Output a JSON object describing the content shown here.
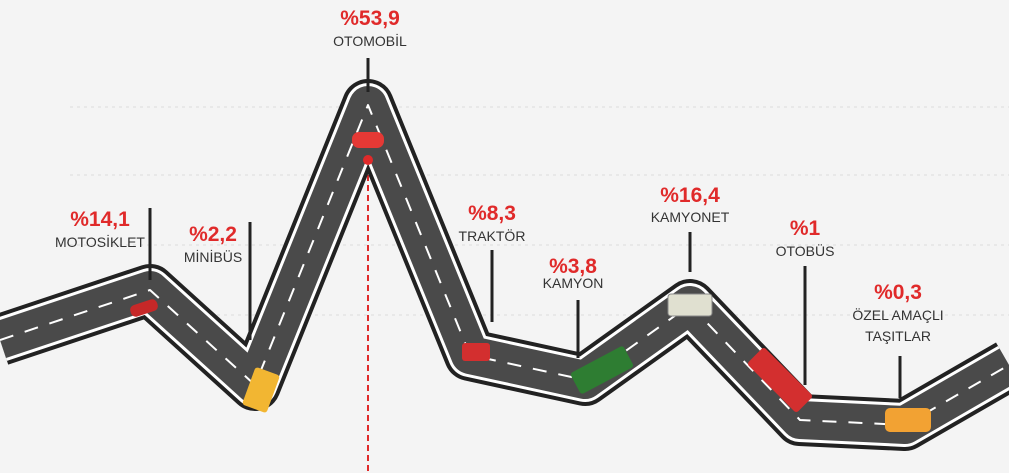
{
  "items": [
    {
      "value_label": "%14,1",
      "name": "MOTOSİKLET"
    },
    {
      "value_label": "%2,2",
      "name": "MİNİBÜS"
    },
    {
      "value_label": "%53,9",
      "name": "OTOMOBİL"
    },
    {
      "value_label": "%8,3",
      "name": "TRAKTÖR"
    },
    {
      "value_label": "%3,8",
      "name": "KAMYON"
    },
    {
      "value_label": "%16,4",
      "name": "KAMYONET"
    },
    {
      "value_label": "%1",
      "name": "OTOBÜS"
    },
    {
      "value_label": "%0,3",
      "name_lines": [
        "ÖZEL AMAÇLI",
        "TAŞITLAR"
      ]
    }
  ]
}
